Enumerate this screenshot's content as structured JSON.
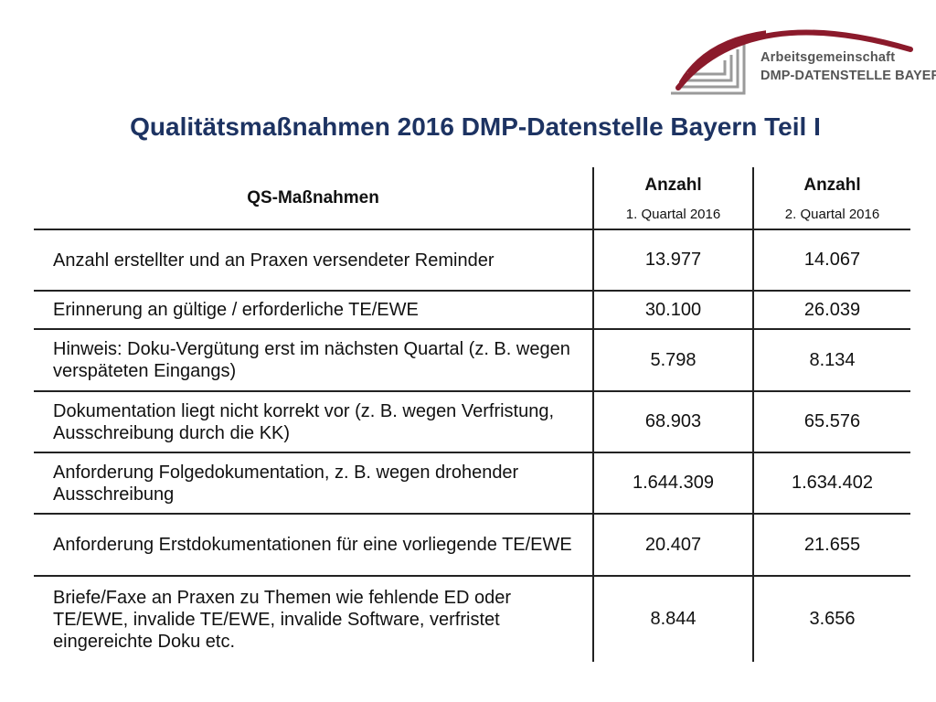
{
  "logo": {
    "line1": "Arbeitsgemeinschaft",
    "line2": "DMP-DATENSTELLE BAYERN",
    "arc_color": "#8b1a2b",
    "lines_color": "#9a9a9a"
  },
  "title": "Qualitätsmaßnahmen 2016 DMP-Datenstelle Bayern Teil I",
  "title_color": "#1d3362",
  "table": {
    "header": {
      "label": "QS-Maßnahmen",
      "col1_main": "Anzahl",
      "col1_sub": "1. Quartal 2016",
      "col2_main": "Anzahl",
      "col2_sub": "2. Quartal 2016"
    },
    "rows": [
      {
        "label": "Anzahl erstellter und an Praxen versendeter Reminder",
        "q1": "13.977",
        "q2": "14.067"
      },
      {
        "label": "Erinnerung an gültige / erforderliche TE/EWE",
        "q1": "30.100",
        "q2": "26.039"
      },
      {
        "label": "Hinweis: Doku-Vergütung erst im nächsten Quartal (z. B. wegen verspäteten Eingangs)",
        "q1": "5.798",
        "q2": "8.134"
      },
      {
        "label": "Dokumentation liegt nicht korrekt vor (z. B. wegen Verfristung, Ausschreibung durch die KK)",
        "q1": "68.903",
        "q2": "65.576"
      },
      {
        "label": "Anforderung Folgedokumentation, z. B. wegen drohender Ausschreibung",
        "q1": "1.644.309",
        "q2": "1.634.402"
      },
      {
        "label": "Anforderung Erstdokumentationen für eine vorliegende TE/EWE",
        "q1": "20.407",
        "q2": "21.655"
      },
      {
        "label": "Briefe/Faxe an Praxen zu Themen wie fehlende ED oder TE/EWE, invalide TE/EWE, invalide Software, verfristet eingereichte Doku etc.",
        "q1": "8.844",
        "q2": "3.656"
      }
    ]
  }
}
